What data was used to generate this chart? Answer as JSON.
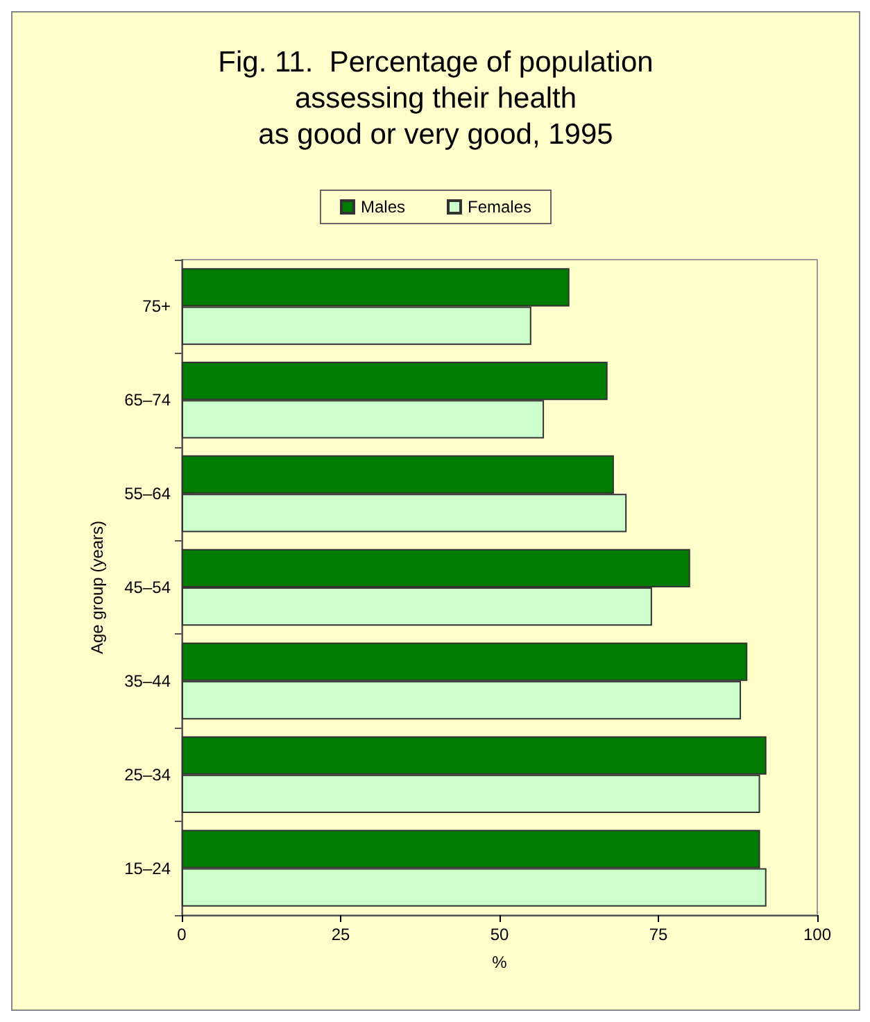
{
  "chart_data": {
    "type": "bar",
    "orientation": "horizontal",
    "title": "Fig. 11.  Percentage of population\nassessing their health\nas good or very good, 1995",
    "xlabel": "%",
    "ylabel": "Age group (years)",
    "categories": [
      "75+",
      "65–74",
      "55–64",
      "45–54",
      "35–44",
      "25–34",
      "15–24"
    ],
    "series": [
      {
        "name": "Males",
        "color": "#007d00",
        "values": [
          61,
          67,
          68,
          80,
          89,
          92,
          91
        ]
      },
      {
        "name": "Females",
        "color": "#ccffcc",
        "values": [
          55,
          57,
          70,
          74,
          88,
          91,
          92
        ]
      }
    ],
    "xlim": [
      0,
      100
    ],
    "xticks": [
      0,
      25,
      50,
      75,
      100
    ],
    "grid": false,
    "legend": "top"
  }
}
